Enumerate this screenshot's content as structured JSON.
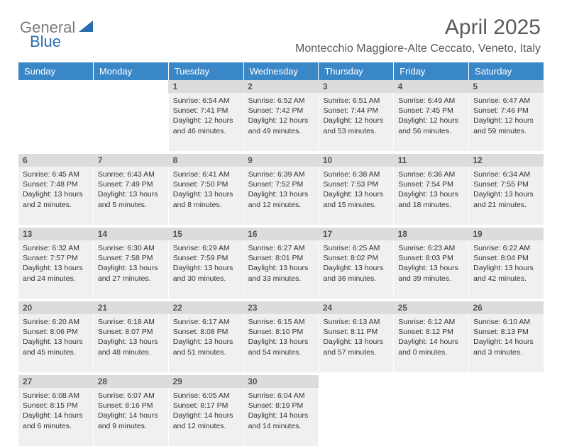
{
  "logo": {
    "gray": "General",
    "blue": "Blue"
  },
  "title": "April 2025",
  "subtitle": "Montecchio Maggiore-Alte Ceccato, Veneto, Italy",
  "colors": {
    "header_bg": "#3a87c8",
    "header_text": "#ffffff",
    "daynum_bg": "#dcdcdc",
    "cell_bg": "#f0f0f0",
    "text": "#333333",
    "logo_gray": "#7a7a7a",
    "logo_blue": "#2a6db0"
  },
  "daysOfWeek": [
    "Sunday",
    "Monday",
    "Tuesday",
    "Wednesday",
    "Thursday",
    "Friday",
    "Saturday"
  ],
  "weeks": [
    {
      "nums": [
        "",
        "",
        "1",
        "2",
        "3",
        "4",
        "5"
      ],
      "cells": [
        null,
        null,
        {
          "sunrise": "6:54 AM",
          "sunset": "7:41 PM",
          "daylight": "12 hours and 46 minutes."
        },
        {
          "sunrise": "6:52 AM",
          "sunset": "7:42 PM",
          "daylight": "12 hours and 49 minutes."
        },
        {
          "sunrise": "6:51 AM",
          "sunset": "7:44 PM",
          "daylight": "12 hours and 53 minutes."
        },
        {
          "sunrise": "6:49 AM",
          "sunset": "7:45 PM",
          "daylight": "12 hours and 56 minutes."
        },
        {
          "sunrise": "6:47 AM",
          "sunset": "7:46 PM",
          "daylight": "12 hours and 59 minutes."
        }
      ]
    },
    {
      "nums": [
        "6",
        "7",
        "8",
        "9",
        "10",
        "11",
        "12"
      ],
      "cells": [
        {
          "sunrise": "6:45 AM",
          "sunset": "7:48 PM",
          "daylight": "13 hours and 2 minutes."
        },
        {
          "sunrise": "6:43 AM",
          "sunset": "7:49 PM",
          "daylight": "13 hours and 5 minutes."
        },
        {
          "sunrise": "6:41 AM",
          "sunset": "7:50 PM",
          "daylight": "13 hours and 8 minutes."
        },
        {
          "sunrise": "6:39 AM",
          "sunset": "7:52 PM",
          "daylight": "13 hours and 12 minutes."
        },
        {
          "sunrise": "6:38 AM",
          "sunset": "7:53 PM",
          "daylight": "13 hours and 15 minutes."
        },
        {
          "sunrise": "6:36 AM",
          "sunset": "7:54 PM",
          "daylight": "13 hours and 18 minutes."
        },
        {
          "sunrise": "6:34 AM",
          "sunset": "7:55 PM",
          "daylight": "13 hours and 21 minutes."
        }
      ]
    },
    {
      "nums": [
        "13",
        "14",
        "15",
        "16",
        "17",
        "18",
        "19"
      ],
      "cells": [
        {
          "sunrise": "6:32 AM",
          "sunset": "7:57 PM",
          "daylight": "13 hours and 24 minutes."
        },
        {
          "sunrise": "6:30 AM",
          "sunset": "7:58 PM",
          "daylight": "13 hours and 27 minutes."
        },
        {
          "sunrise": "6:29 AM",
          "sunset": "7:59 PM",
          "daylight": "13 hours and 30 minutes."
        },
        {
          "sunrise": "6:27 AM",
          "sunset": "8:01 PM",
          "daylight": "13 hours and 33 minutes."
        },
        {
          "sunrise": "6:25 AM",
          "sunset": "8:02 PM",
          "daylight": "13 hours and 36 minutes."
        },
        {
          "sunrise": "6:23 AM",
          "sunset": "8:03 PM",
          "daylight": "13 hours and 39 minutes."
        },
        {
          "sunrise": "6:22 AM",
          "sunset": "8:04 PM",
          "daylight": "13 hours and 42 minutes."
        }
      ]
    },
    {
      "nums": [
        "20",
        "21",
        "22",
        "23",
        "24",
        "25",
        "26"
      ],
      "cells": [
        {
          "sunrise": "6:20 AM",
          "sunset": "8:06 PM",
          "daylight": "13 hours and 45 minutes."
        },
        {
          "sunrise": "6:18 AM",
          "sunset": "8:07 PM",
          "daylight": "13 hours and 48 minutes."
        },
        {
          "sunrise": "6:17 AM",
          "sunset": "8:08 PM",
          "daylight": "13 hours and 51 minutes."
        },
        {
          "sunrise": "6:15 AM",
          "sunset": "8:10 PM",
          "daylight": "13 hours and 54 minutes."
        },
        {
          "sunrise": "6:13 AM",
          "sunset": "8:11 PM",
          "daylight": "13 hours and 57 minutes."
        },
        {
          "sunrise": "6:12 AM",
          "sunset": "8:12 PM",
          "daylight": "14 hours and 0 minutes."
        },
        {
          "sunrise": "6:10 AM",
          "sunset": "8:13 PM",
          "daylight": "14 hours and 3 minutes."
        }
      ]
    },
    {
      "nums": [
        "27",
        "28",
        "29",
        "30",
        "",
        "",
        ""
      ],
      "cells": [
        {
          "sunrise": "6:08 AM",
          "sunset": "8:15 PM",
          "daylight": "14 hours and 6 minutes."
        },
        {
          "sunrise": "6:07 AM",
          "sunset": "8:16 PM",
          "daylight": "14 hours and 9 minutes."
        },
        {
          "sunrise": "6:05 AM",
          "sunset": "8:17 PM",
          "daylight": "14 hours and 12 minutes."
        },
        {
          "sunrise": "6:04 AM",
          "sunset": "8:19 PM",
          "daylight": "14 hours and 14 minutes."
        },
        null,
        null,
        null
      ]
    }
  ],
  "labels": {
    "sunrise": "Sunrise:",
    "sunset": "Sunset:",
    "daylight": "Daylight:"
  }
}
